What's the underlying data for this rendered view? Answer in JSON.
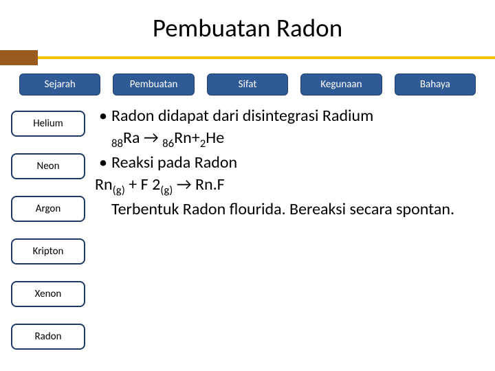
{
  "title": "Pembuatan Radon",
  "colors": {
    "tab_bg": "#2f5a96",
    "tab_text": "#ffffff",
    "tab_border": "#1d3a66",
    "side_border": "#1d3a66",
    "orange_block": "#9b5b1f",
    "yellow_line": "#f3c200",
    "background": "#ffffff",
    "body_text": "#000000"
  },
  "top_tabs": [
    "Sejarah",
    "Pembuatan",
    "Sifat",
    "Kegunaan",
    "Bahaya"
  ],
  "side_items": [
    "Helium",
    "Neon",
    "Argon",
    "Kripton",
    "Xenon",
    "Radon"
  ],
  "content": {
    "b1_line1": "Radon didapat dari disintegrasi Radium",
    "eq1_pre": "88",
    "eq1_a": "Ra → ",
    "eq1_mid": "86",
    "eq1_b": "Rn+",
    "eq1_post": "2",
    "eq1_c": "He",
    "b2": "Reaksi pada Radon",
    "eq2_a": "Rn",
    "eq2_sub1": "(g)",
    "eq2_b": " + F 2",
    "eq2_sub2": "(g)",
    "eq2_c": " → Rn.F",
    "line3": "Terbentuk Radon flourida. Bereaksi secara spontan."
  },
  "typography": {
    "title_fontsize": 37,
    "tab_fontsize": 15,
    "side_fontsize": 15,
    "body_fontsize": 24
  }
}
